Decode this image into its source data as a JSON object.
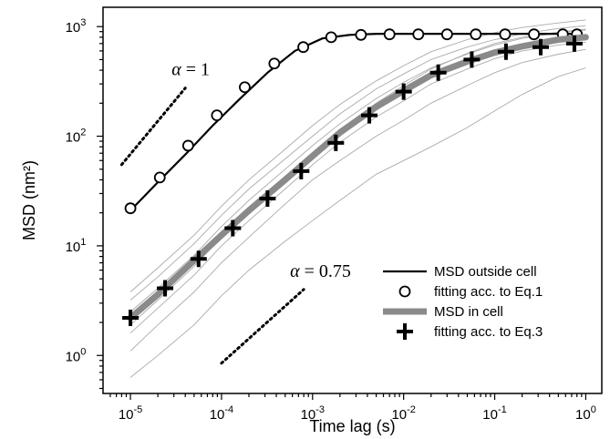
{
  "chart_data": {
    "type": "line",
    "title": "",
    "xlabel": "Time lag (s)",
    "ylabel": "MSD (nm²)",
    "xscale": "log",
    "yscale": "log",
    "xlim": [
      5e-06,
      1.5
    ],
    "ylim": [
      0.45,
      1500
    ],
    "x_ticks": [
      {
        "value": 1e-05,
        "base": "10",
        "exp": "-5"
      },
      {
        "value": 0.0001,
        "base": "10",
        "exp": "-4"
      },
      {
        "value": 0.001,
        "base": "10",
        "exp": "-3"
      },
      {
        "value": 0.01,
        "base": "10",
        "exp": "-2"
      },
      {
        "value": 0.1,
        "base": "10",
        "exp": "-1"
      },
      {
        "value": 1,
        "base": "10",
        "exp": "0"
      }
    ],
    "y_ticks": [
      {
        "value": 1,
        "base": "10",
        "exp": "0"
      },
      {
        "value": 10,
        "base": "10",
        "exp": "1"
      },
      {
        "value": 100,
        "base": "10",
        "exp": "2"
      },
      {
        "value": 1000,
        "base": "10",
        "exp": "3"
      }
    ],
    "grid": false,
    "legend_position": "lower-right",
    "series": [
      {
        "name": "MSD outside cell",
        "style": "line",
        "color": "#000000",
        "x": [
          1e-05,
          2e-05,
          4e-05,
          8e-05,
          0.00016,
          0.00032,
          0.00064,
          0.00128,
          0.00256,
          0.00512,
          0.01,
          0.02,
          0.05,
          0.1,
          0.2,
          0.5,
          0.8
        ],
        "y": [
          21,
          38,
          68,
          125,
          220,
          380,
          600,
          780,
          840,
          860,
          860,
          860,
          860,
          860,
          860,
          860,
          860
        ]
      },
      {
        "name": "fitting acc. to Eq.1",
        "style": "marker",
        "marker": "open-circle",
        "color": "#000000",
        "x": [
          1e-05,
          2.1e-05,
          4.3e-05,
          8.9e-05,
          0.00018,
          0.00038,
          0.00079,
          0.0016,
          0.0034,
          0.007,
          0.0145,
          0.03,
          0.062,
          0.13,
          0.27,
          0.56,
          0.8
        ],
        "y": [
          22,
          42,
          82,
          155,
          280,
          460,
          650,
          800,
          840,
          850,
          850,
          850,
          850,
          850,
          850,
          850,
          850
        ]
      },
      {
        "name": "MSD in cell",
        "style": "thick-line",
        "color": "#8a8a8a",
        "x": [
          1e-05,
          2e-05,
          4e-05,
          0.0001,
          0.0002,
          0.0005,
          0.001,
          0.002,
          0.005,
          0.01,
          0.02,
          0.05,
          0.1,
          0.2,
          0.5,
          1
        ],
        "y": [
          2.2,
          3.6,
          6.2,
          12.5,
          21,
          40,
          66,
          108,
          185,
          260,
          360,
          480,
          580,
          660,
          760,
          800
        ]
      },
      {
        "name": "fitting acc. to Eq.3",
        "style": "marker",
        "marker": "plus",
        "color": "#000000",
        "x": [
          1e-05,
          2.4e-05,
          5.6e-05,
          0.000133,
          0.00032,
          0.00075,
          0.0018,
          0.0042,
          0.01,
          0.024,
          0.056,
          0.133,
          0.32,
          0.75
        ],
        "y": [
          2.2,
          4.1,
          7.6,
          14.5,
          27,
          48,
          87,
          155,
          255,
          380,
          500,
          590,
          650,
          700
        ]
      }
    ],
    "background_traces": {
      "color": "#aaaaaa",
      "x": [
        1e-05,
        2e-05,
        5e-05,
        0.0001,
        0.0002,
        0.0005,
        0.001,
        0.002,
        0.005,
        0.01,
        0.02,
        0.05,
        0.1,
        0.2,
        0.5,
        1
      ],
      "traces": [
        [
          0.63,
          1.0,
          1.9,
          3.5,
          6.0,
          11,
          17,
          26,
          45,
          60,
          80,
          120,
          170,
          240,
          350,
          420
        ],
        [
          1.1,
          1.9,
          3.8,
          7.0,
          12,
          24,
          40,
          60,
          100,
          140,
          200,
          290,
          380,
          470,
          560,
          620
        ],
        [
          1.6,
          2.7,
          5.4,
          10,
          17,
          33,
          55,
          88,
          150,
          210,
          300,
          410,
          510,
          600,
          680,
          720
        ],
        [
          2.5,
          4.1,
          8.2,
          15,
          26,
          50,
          82,
          130,
          220,
          310,
          420,
          560,
          680,
          780,
          880,
          930
        ],
        [
          3.2,
          5.2,
          10.5,
          19,
          33,
          62,
          100,
          160,
          270,
          370,
          500,
          650,
          760,
          860,
          960,
          1020
        ],
        [
          3.8,
          6.3,
          12.5,
          23,
          40,
          76,
          125,
          195,
          320,
          440,
          590,
          760,
          880,
          980,
          1080,
          1150
        ],
        [
          1.9,
          3.2,
          6.5,
          12,
          21,
          42,
          70,
          115,
          200,
          290,
          410,
          570,
          700,
          800,
          890,
          950
        ]
      ]
    },
    "reference_lines": [
      {
        "label_symbol": "α",
        "label_rest": " = 1",
        "x": [
          8e-06,
          4e-05
        ],
        "y": [
          55,
          275
        ]
      },
      {
        "label_symbol": "α",
        "label_rest": " = 0.75",
        "x": [
          0.0001,
          0.0008
        ],
        "y": [
          0.85,
          4.0
        ]
      }
    ],
    "legend": [
      {
        "label": "MSD outside cell",
        "style": "line"
      },
      {
        "label": "fitting acc. to Eq.1",
        "style": "open-circle"
      },
      {
        "label": "MSD in cell",
        "style": "thick-line"
      },
      {
        "label": "fitting acc. to Eq.3",
        "style": "plus"
      }
    ]
  }
}
